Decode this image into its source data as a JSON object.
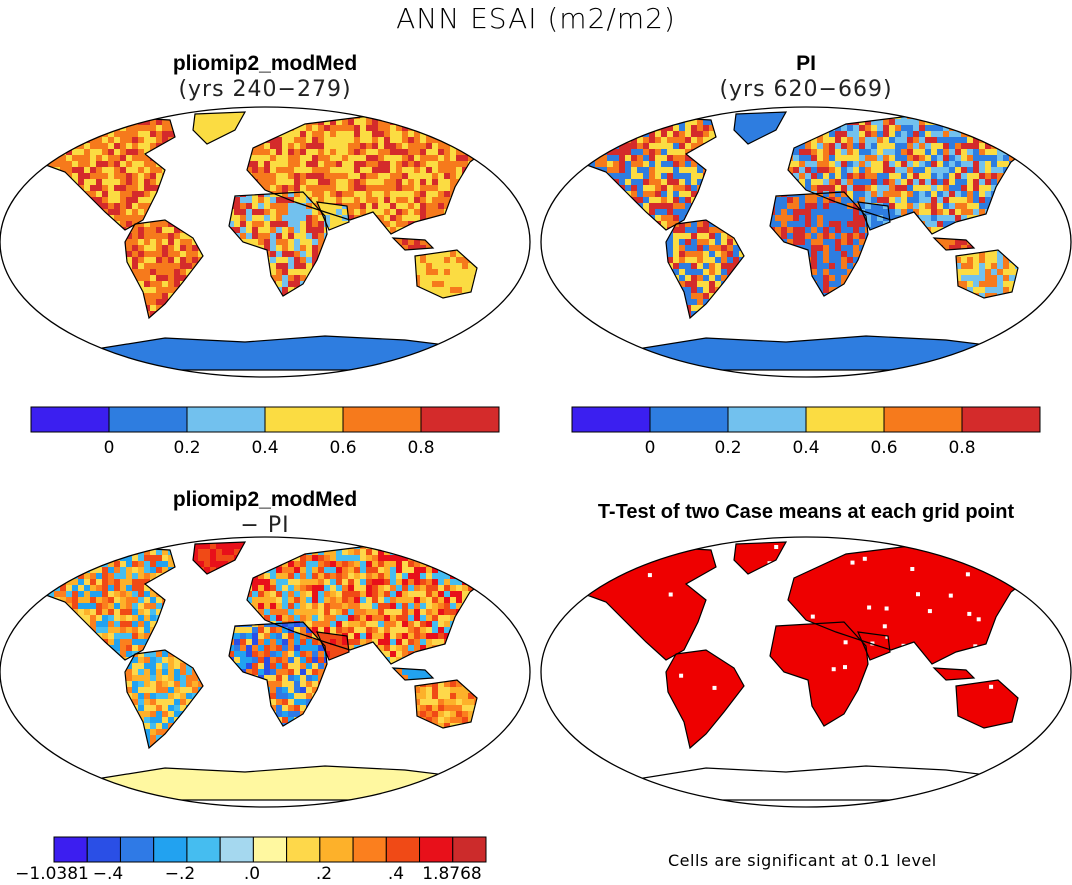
{
  "figure": {
    "title": "ANN ESAI (m2/m2)",
    "footnote": "Cells are significant at 0.1 level"
  },
  "chart_data": [
    {
      "type": "heatmap",
      "title": "pliomip2_modMed",
      "subtitle": "(yrs 240−279)",
      "projection": "robinson",
      "colorbar": {
        "levels": [
          0,
          0.2,
          0.4,
          0.6,
          0.8
        ],
        "tick_labels": [
          "0",
          "0.2",
          "0.4",
          "0.6",
          "0.8"
        ],
        "colors": [
          "#3b1ff0",
          "#2e7de0",
          "#72c1ee",
          "#fbdc42",
          "#f67a1c",
          "#d42b2b"
        ]
      }
    },
    {
      "type": "heatmap",
      "title": "PI",
      "subtitle": "(yrs 620−669)",
      "projection": "robinson",
      "colorbar": {
        "levels": [
          0,
          0.2,
          0.4,
          0.6,
          0.8
        ],
        "tick_labels": [
          "0",
          "0.2",
          "0.4",
          "0.6",
          "0.8"
        ],
        "colors": [
          "#3b1ff0",
          "#2e7de0",
          "#72c1ee",
          "#fbdc42",
          "#f67a1c",
          "#d42b2b"
        ]
      }
    },
    {
      "type": "heatmap",
      "title": "pliomip2_modMed",
      "subtitle": "− PI",
      "projection": "robinson",
      "colorbar": {
        "min": -1.0381,
        "max": 1.8768,
        "tick_labels": [
          "−1.0381",
          "−.4",
          "−.2",
          ".0",
          ".2",
          ".4",
          "1.8768"
        ],
        "colors": [
          "#3c1ef0",
          "#2a4fe6",
          "#2f7ae6",
          "#22a2f0",
          "#45bdf0",
          "#a5d8ef",
          "#fff8a0",
          "#fed84a",
          "#fdb12a",
          "#fb7f1e",
          "#f04a16",
          "#e8101a",
          "#cc2b2b"
        ]
      }
    },
    {
      "type": "heatmap",
      "title": "T-Test of two Case means at each grid point",
      "projection": "robinson",
      "significance_color": "#ee0000"
    }
  ]
}
